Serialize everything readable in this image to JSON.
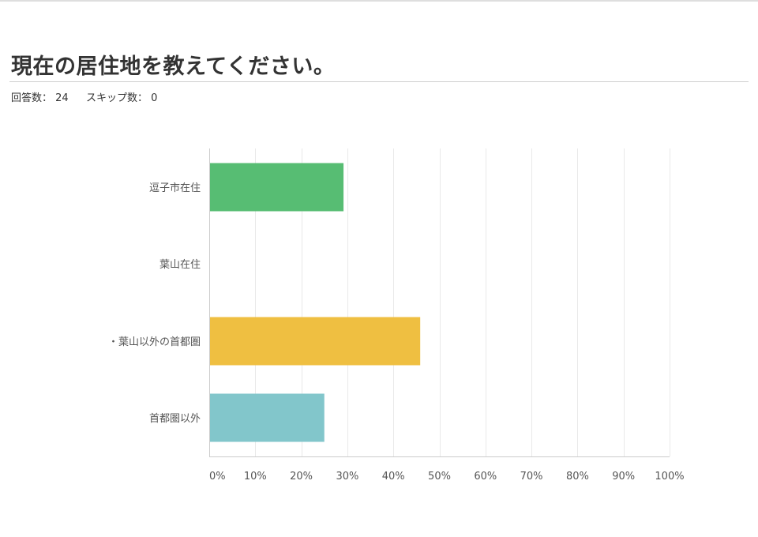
{
  "question": {
    "title": "現在の居住地を教えてください。"
  },
  "stats": {
    "answered_label": "回答数：",
    "answered_value": "24",
    "skipped_label": "スキップ数：",
    "skipped_value": "0"
  },
  "chart_data": {
    "type": "bar",
    "orientation": "horizontal",
    "categories": [
      "逗子市在住",
      "葉山在住",
      "・葉山以外の首都圏",
      "首都圏以外"
    ],
    "values": [
      29.17,
      0,
      45.83,
      25.0
    ],
    "colors": [
      "#57bd73",
      "#57bd73",
      "#efbf41",
      "#82c6cb"
    ],
    "xlim": [
      0,
      100
    ],
    "xticks": [
      0,
      10,
      20,
      30,
      40,
      50,
      60,
      70,
      80,
      90,
      100
    ],
    "xtick_labels": [
      "0%",
      "10%",
      "20%",
      "30%",
      "40%",
      "50%",
      "60%",
      "70%",
      "80%",
      "90%",
      "100%"
    ],
    "grid": true
  }
}
